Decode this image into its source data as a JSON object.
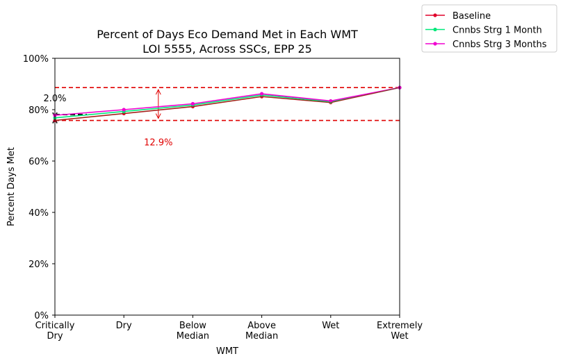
{
  "chart_data": {
    "type": "line",
    "title": "Percent of Days Eco Demand Met in Each WMT",
    "subtitle": "LOI 5555, Across SSCs, EPP 25",
    "xlabel": "WMT",
    "ylabel": "Percent Days Met",
    "categories": [
      "Critically\nDry",
      "Dry",
      "Below\nMedian",
      "Above\nMedian",
      "Wet",
      "Extremely\nWet"
    ],
    "ylim": [
      0,
      100
    ],
    "yticks": [
      "0%",
      "20%",
      "40%",
      "60%",
      "80%",
      "100%"
    ],
    "legend_position": "upper-right-outside",
    "series": [
      {
        "name": "Baseline",
        "color": "#e0002a",
        "values": [
          75.8,
          78.5,
          81.2,
          85.1,
          82.8,
          88.6
        ]
      },
      {
        "name": "Cnnbs Strg 1 Month",
        "color": "#00e87a",
        "values": [
          76.8,
          79.3,
          81.8,
          85.7,
          83.1,
          88.6
        ]
      },
      {
        "name": "Cnnbs Strg 3 Months",
        "color": "#f000d0",
        "values": [
          77.8,
          80.0,
          82.3,
          86.2,
          83.4,
          88.6
        ]
      }
    ],
    "reference_lines": {
      "upper": 88.6,
      "lower": 75.8,
      "color": "#e00000"
    },
    "annotations": {
      "range_label": "12.9%",
      "range_color": "#e00000",
      "left_label": "2.0%"
    }
  }
}
